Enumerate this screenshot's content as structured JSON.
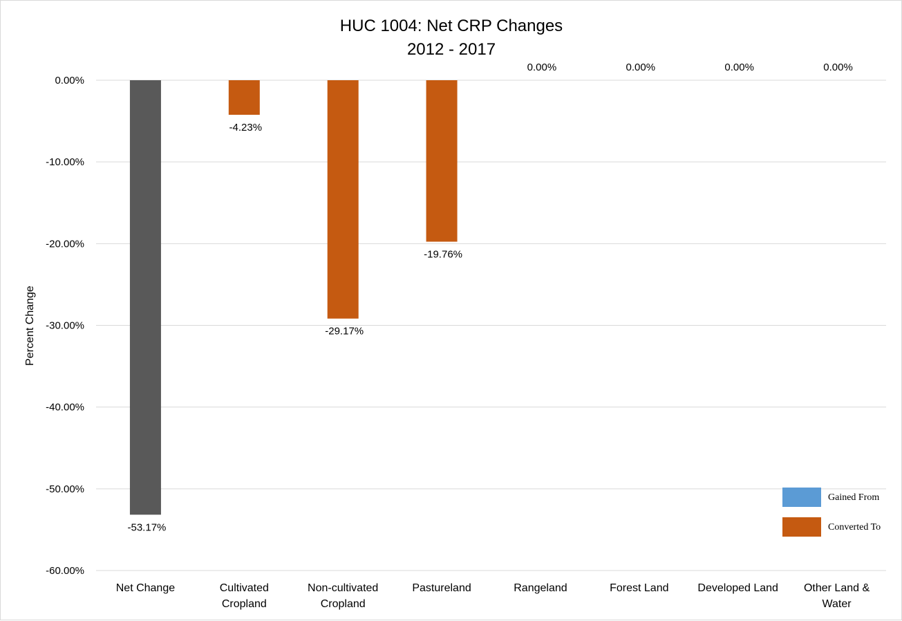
{
  "chart_data": {
    "type": "bar",
    "title": [
      "HUC 1004: Net CRP Changes",
      "2012 - 2017"
    ],
    "ylabel": "Percent Change",
    "xlabel": "",
    "ylim": [
      -60,
      0
    ],
    "yticks": [
      0,
      -10,
      -20,
      -30,
      -40,
      -50,
      -60
    ],
    "ytick_labels": [
      "0.00%",
      "-10.00%",
      "-20.00%",
      "-30.00%",
      "-40.00%",
      "-50.00%",
      "-60.00%"
    ],
    "grid": true,
    "legend_position": "bottom-right",
    "categories": [
      [
        "Net Change"
      ],
      [
        "Cultivated",
        "Cropland"
      ],
      [
        "Non-cultivated",
        "Cropland"
      ],
      [
        "Pastureland"
      ],
      [
        "Rangeland"
      ],
      [
        "Forest Land"
      ],
      [
        "Developed Land"
      ],
      [
        "Other Land &",
        "Water"
      ]
    ],
    "values": [
      -53.17,
      -4.23,
      -29.17,
      -19.76,
      0,
      0,
      0,
      0
    ],
    "data_labels": [
      "-53.17%",
      "-4.23%",
      "-29.17%",
      "-19.76%",
      "0.00%",
      "0.00%",
      "0.00%",
      "0.00%"
    ],
    "bar_series": [
      "net",
      "converted",
      "converted",
      "converted",
      "converted",
      "converted",
      "converted",
      "converted"
    ],
    "colors": {
      "net": "#595959",
      "gained": "#5b9bd5",
      "converted": "#c55a11",
      "grid": "#d9d9d9"
    },
    "legend": [
      {
        "label": "Gained From",
        "color": "#5b9bd5"
      },
      {
        "label": "Converted To",
        "color": "#c55a11"
      }
    ]
  }
}
